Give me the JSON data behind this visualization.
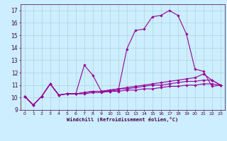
{
  "xlabel": "Windchill (Refroidissement éolien,°C)",
  "background_color": "#cceeff",
  "grid_color": "#aad8d8",
  "line_color": "#990099",
  "x_hours": [
    0,
    1,
    2,
    3,
    4,
    5,
    6,
    7,
    8,
    9,
    10,
    11,
    12,
    13,
    14,
    15,
    16,
    17,
    18,
    19,
    20,
    21,
    22,
    23
  ],
  "series1": [
    10.1,
    9.4,
    10.1,
    11.1,
    10.2,
    10.3,
    10.3,
    12.6,
    11.8,
    10.5,
    10.5,
    10.6,
    13.9,
    15.4,
    15.5,
    16.5,
    16.6,
    17.0,
    16.6,
    15.1,
    12.3,
    12.1,
    10.9,
    11.0
  ],
  "series2": [
    10.1,
    9.4,
    10.1,
    11.1,
    10.2,
    10.3,
    10.3,
    10.4,
    10.5,
    10.5,
    10.6,
    10.7,
    10.8,
    10.9,
    11.0,
    11.1,
    11.2,
    11.3,
    11.4,
    11.5,
    11.6,
    11.9,
    11.4,
    11.0
  ],
  "series3": [
    10.1,
    9.4,
    10.1,
    11.1,
    10.2,
    10.3,
    10.3,
    10.4,
    10.5,
    10.5,
    10.6,
    10.7,
    10.7,
    10.8,
    10.9,
    11.0,
    11.0,
    11.1,
    11.2,
    11.3,
    11.3,
    11.4,
    11.4,
    11.0
  ],
  "series4": [
    10.1,
    9.4,
    10.1,
    11.1,
    10.2,
    10.3,
    10.3,
    10.3,
    10.4,
    10.4,
    10.5,
    10.5,
    10.6,
    10.6,
    10.7,
    10.7,
    10.8,
    10.9,
    10.9,
    11.0,
    11.0,
    11.1,
    11.1,
    11.0
  ],
  "ylim": [
    9.0,
    17.5
  ],
  "yticks": [
    9,
    10,
    11,
    12,
    13,
    14,
    15,
    16,
    17
  ],
  "xlim": [
    -0.5,
    23.5
  ],
  "xticks": [
    0,
    1,
    2,
    3,
    4,
    5,
    6,
    7,
    8,
    9,
    10,
    11,
    12,
    13,
    14,
    15,
    16,
    17,
    18,
    19,
    20,
    21,
    22,
    23
  ]
}
